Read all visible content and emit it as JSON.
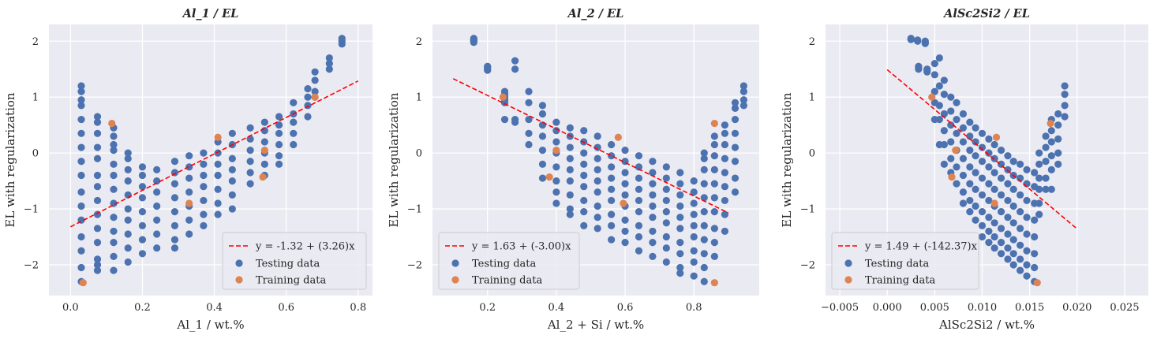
{
  "chart_data": [
    {
      "type": "scatter",
      "title": "Al_1 / EL",
      "xlabel": "Al_1 / wt.%",
      "ylabel": "EL with regularization",
      "xlim": [
        -0.06,
        0.84
      ],
      "ylim": [
        -2.55,
        2.3
      ],
      "xticks": [
        0.0,
        0.2,
        0.4,
        0.6,
        0.8
      ],
      "xtick_labels": [
        "0.0",
        "0.2",
        "0.4",
        "0.6",
        "0.8"
      ],
      "yticks": [
        -2,
        -1,
        0,
        1,
        2
      ],
      "ytick_labels": [
        "−2",
        "−1",
        "0",
        "1",
        "2"
      ],
      "grid": true,
      "legend_position": "lower-right",
      "fit": {
        "label": "y = -1.32 + (3.26)x",
        "x": [
          0.0,
          0.8
        ],
        "y": [
          -1.32,
          1.288
        ]
      },
      "testing": {
        "name": "Testing data",
        "columns": [
          {
            "x": 0.03,
            "y": [
              1.2,
              1.1,
              0.95,
              0.85,
              0.6,
              0.35,
              0.1,
              -0.15,
              -0.4,
              -0.7,
              -0.95,
              -1.2,
              -1.5,
              -1.75,
              -2.05,
              -2.3
            ]
          },
          {
            "x": 0.075,
            "y": [
              0.65,
              0.55,
              0.35,
              0.1,
              -0.1,
              -0.4,
              -0.6,
              -0.85,
              -1.1,
              -1.35,
              -1.6,
              -1.9,
              -2.0,
              -2.1
            ]
          },
          {
            "x": 0.12,
            "y": [
              0.45,
              0.3,
              0.15,
              0.05,
              -0.2,
              -0.4,
              -0.65,
              -0.9,
              -1.15,
              -1.4,
              -1.6,
              -1.85,
              -2.1
            ]
          },
          {
            "x": 0.16,
            "y": [
              0.0,
              -0.1,
              -0.3,
              -0.5,
              -0.75,
              -1.0,
              -1.2,
              -1.45,
              -1.7,
              -1.95
            ]
          },
          {
            "x": 0.2,
            "y": [
              -0.25,
              -0.4,
              -0.6,
              -0.8,
              -1.05,
              -1.3,
              -1.55,
              -1.8
            ]
          },
          {
            "x": 0.24,
            "y": [
              -0.3,
              -0.5,
              -0.7,
              -0.95,
              -1.2,
              -1.45,
              -1.7
            ]
          },
          {
            "x": 0.29,
            "y": [
              -0.15,
              -0.35,
              -0.55,
              -0.8,
              -1.05,
              -1.3,
              -1.55,
              -1.7
            ]
          },
          {
            "x": 0.33,
            "y": [
              -0.05,
              -0.25,
              -0.45,
              -0.7,
              -0.95,
              -1.2,
              -1.45
            ]
          },
          {
            "x": 0.37,
            "y": [
              0.0,
              -0.2,
              -0.4,
              -0.6,
              -0.85,
              -1.1,
              -1.3
            ]
          },
          {
            "x": 0.41,
            "y": [
              0.2,
              0.0,
              -0.2,
              -0.4,
              -0.65,
              -0.9,
              -1.1
            ]
          },
          {
            "x": 0.45,
            "y": [
              0.35,
              0.15,
              -0.1,
              -0.3,
              -0.5,
              -0.75,
              -1.0
            ]
          },
          {
            "x": 0.5,
            "y": [
              0.45,
              0.25,
              0.05,
              -0.15,
              -0.35,
              -0.55
            ]
          },
          {
            "x": 0.54,
            "y": [
              0.55,
              0.4,
              0.2,
              0.0,
              -0.2,
              -0.4
            ]
          },
          {
            "x": 0.58,
            "y": [
              0.65,
              0.5,
              0.35,
              0.15,
              -0.05,
              -0.2
            ]
          },
          {
            "x": 0.62,
            "y": [
              0.9,
              0.7,
              0.55,
              0.35,
              0.15
            ]
          },
          {
            "x": 0.66,
            "y": [
              1.15,
              1.0,
              0.85,
              0.65
            ]
          },
          {
            "x": 0.68,
            "y": [
              1.45,
              1.3,
              1.1,
              1.0
            ]
          },
          {
            "x": 0.72,
            "y": [
              1.7,
              1.6,
              1.5
            ]
          },
          {
            "x": 0.755,
            "y": [
              2.05,
              2.0,
              1.95
            ]
          }
        ]
      },
      "training": {
        "name": "Training data",
        "points": [
          [
            0.035,
            -2.32
          ],
          [
            0.115,
            0.53
          ],
          [
            0.33,
            -0.9
          ],
          [
            0.41,
            0.28
          ],
          [
            0.535,
            -0.43
          ],
          [
            0.54,
            0.05
          ],
          [
            0.68,
            1.0
          ]
        ]
      }
    },
    {
      "type": "scatter",
      "title": "Al_2 / EL",
      "xlabel": "Al_2 + Si / wt.%",
      "ylabel": "EL with regularization",
      "xlim": [
        0.04,
        0.99
      ],
      "ylim": [
        -2.55,
        2.3
      ],
      "xticks": [
        0.2,
        0.4,
        0.6,
        0.8
      ],
      "xtick_labels": [
        "0.2",
        "0.4",
        "0.6",
        "0.8"
      ],
      "yticks": [
        -2,
        -1,
        0,
        1,
        2
      ],
      "ytick_labels": [
        "−2",
        "−1",
        "0",
        "1",
        "2"
      ],
      "grid": true,
      "legend_position": "lower-left",
      "fit": {
        "label": "y = 1.63 + (-3.00)x",
        "x": [
          0.1,
          0.9
        ],
        "y": [
          1.33,
          -1.07
        ]
      },
      "testing": {
        "name": "Testing data",
        "columns": [
          {
            "x": 0.16,
            "y": [
              2.05,
              2.03,
              2.01,
              2.0,
              1.98
            ]
          },
          {
            "x": 0.2,
            "y": [
              1.55,
              1.53,
              1.5,
              1.48
            ]
          },
          {
            "x": 0.25,
            "y": [
              1.1,
              1.05,
              1.0,
              0.95,
              0.9,
              0.6
            ]
          },
          {
            "x": 0.28,
            "y": [
              1.5,
              1.65,
              0.6,
              0.55
            ]
          },
          {
            "x": 0.32,
            "y": [
              1.1,
              0.9,
              0.6,
              0.35,
              0.15
            ]
          },
          {
            "x": 0.36,
            "y": [
              0.85,
              0.7,
              0.5,
              0.3,
              0.05,
              -0.2,
              -0.45
            ]
          },
          {
            "x": 0.4,
            "y": [
              0.55,
              0.4,
              0.2,
              0.0,
              -0.25,
              -0.5,
              -0.7,
              -0.9
            ]
          },
          {
            "x": 0.44,
            "y": [
              0.45,
              0.3,
              0.1,
              -0.1,
              -0.3,
              -0.5,
              -0.75,
              -1.0,
              -1.1
            ]
          },
          {
            "x": 0.48,
            "y": [
              0.4,
              0.2,
              0.0,
              -0.2,
              -0.4,
              -0.6,
              -0.85,
              -1.05,
              -1.3
            ]
          },
          {
            "x": 0.52,
            "y": [
              0.3,
              0.1,
              -0.1,
              -0.3,
              -0.5,
              -0.7,
              -0.95,
              -1.15,
              -1.35
            ]
          },
          {
            "x": 0.56,
            "y": [
              0.15,
              -0.05,
              -0.25,
              -0.45,
              -0.65,
              -0.85,
              -1.1,
              -1.3,
              -1.55
            ]
          },
          {
            "x": 0.6,
            "y": [
              0.05,
              -0.15,
              -0.35,
              -0.55,
              -0.75,
              -0.95,
              -1.2,
              -1.4,
              -1.6
            ]
          },
          {
            "x": 0.64,
            "y": [
              -0.05,
              -0.25,
              -0.45,
              -0.65,
              -0.85,
              -1.05,
              -1.3,
              -1.5,
              -1.75
            ]
          },
          {
            "x": 0.68,
            "y": [
              -0.15,
              -0.35,
              -0.55,
              -0.75,
              -0.95,
              -1.15,
              -1.4,
              -1.6,
              -1.85
            ]
          },
          {
            "x": 0.72,
            "y": [
              -0.25,
              -0.45,
              -0.65,
              -0.85,
              -1.05,
              -1.25,
              -1.5,
              -1.7,
              -1.95
            ]
          },
          {
            "x": 0.76,
            "y": [
              -0.35,
              -0.55,
              -0.75,
              -0.95,
              -1.15,
              -1.35,
              -1.6,
              -1.8,
              -2.05,
              -2.15
            ]
          },
          {
            "x": 0.8,
            "y": [
              -0.5,
              -0.7,
              -0.9,
              -1.1,
              -1.3,
              -1.5,
              -1.75,
              -1.95,
              -2.2
            ]
          },
          {
            "x": 0.83,
            "y": [
              0.0,
              -0.1,
              -0.3,
              -0.55,
              -0.8,
              -1.05,
              -1.3,
              -1.55,
              -1.8,
              -2.05,
              -2.3
            ]
          },
          {
            "x": 0.86,
            "y": [
              0.3,
              0.15,
              -0.05,
              -0.3,
              -0.55,
              -0.8,
              -1.05,
              -1.35,
              -1.6,
              -1.85
            ]
          },
          {
            "x": 0.89,
            "y": [
              0.5,
              0.35,
              0.15,
              -0.1,
              -0.35,
              -0.6,
              -0.85,
              -1.1,
              -1.4
            ]
          },
          {
            "x": 0.92,
            "y": [
              0.9,
              0.8,
              0.6,
              0.35,
              0.1,
              -0.15,
              -0.45,
              -0.7
            ]
          },
          {
            "x": 0.945,
            "y": [
              1.2,
              1.1,
              0.95,
              0.85
            ]
          }
        ]
      },
      "training": {
        "name": "Training data",
        "points": [
          [
            0.245,
            1.0
          ],
          [
            0.38,
            -0.43
          ],
          [
            0.4,
            0.05
          ],
          [
            0.58,
            0.28
          ],
          [
            0.595,
            -0.9
          ],
          [
            0.86,
            -2.32
          ],
          [
            0.86,
            0.53
          ]
        ]
      }
    },
    {
      "type": "scatter",
      "title": "AlSc2Si2 / EL",
      "xlabel": "AlSc2Si2 / wt.%",
      "ylabel": "EL with regularization",
      "xlim": [
        -0.0065,
        0.0275
      ],
      "ylim": [
        -2.55,
        2.3
      ],
      "xticks": [
        -0.005,
        0.0,
        0.005,
        0.01,
        0.015,
        0.02,
        0.025
      ],
      "xtick_labels": [
        "−0.005",
        "0.000",
        "0.005",
        "0.010",
        "0.015",
        "0.020",
        "0.025"
      ],
      "yticks": [
        -2,
        -1,
        0,
        1,
        2
      ],
      "ytick_labels": [
        "−2",
        "−1",
        "0",
        "1",
        "2"
      ],
      "grid": true,
      "legend_position": "lower-left",
      "fit": {
        "label": "y = 1.49 + (-142.37)x",
        "x": [
          0.0,
          0.02
        ],
        "y": [
          1.49,
          -1.357
        ]
      },
      "testing": {
        "name": "Testing data",
        "columns": [
          {
            "x": 0.0025,
            "y": [
              2.05,
              2.03
            ]
          },
          {
            "x": 0.0032,
            "y": [
              2.02,
              2.0
            ]
          },
          {
            "x": 0.004,
            "y": [
              2.0,
              1.98,
              1.96
            ]
          },
          {
            "x": 0.0033,
            "y": [
              1.55,
              1.53,
              1.5
            ]
          },
          {
            "x": 0.0042,
            "y": [
              1.5,
              1.48,
              1.45
            ]
          },
          {
            "x": 0.005,
            "y": [
              1.6,
              1.4,
              1.1,
              0.9,
              0.6
            ]
          },
          {
            "x": 0.0055,
            "y": [
              1.7,
              1.2,
              0.85,
              0.6,
              0.15
            ]
          },
          {
            "x": 0.006,
            "y": [
              1.3,
              1.05,
              0.7,
              0.4,
              0.15,
              -0.2
            ]
          },
          {
            "x": 0.0067,
            "y": [
              1.0,
              0.75,
              0.5,
              0.2,
              -0.1,
              -0.35
            ]
          },
          {
            "x": 0.0073,
            "y": [
              0.9,
              0.6,
              0.35,
              0.05,
              -0.25,
              -0.55
            ]
          },
          {
            "x": 0.008,
            "y": [
              0.7,
              0.45,
              0.2,
              -0.1,
              -0.4,
              -0.7,
              -0.9
            ]
          },
          {
            "x": 0.0087,
            "y": [
              0.55,
              0.3,
              0.05,
              -0.25,
              -0.55,
              -0.85,
              -1.05
            ]
          },
          {
            "x": 0.0093,
            "y": [
              0.45,
              0.2,
              -0.05,
              -0.35,
              -0.65,
              -0.95,
              -1.2
            ]
          },
          {
            "x": 0.01,
            "y": [
              0.35,
              0.1,
              -0.15,
              -0.45,
              -0.75,
              -1.05,
              -1.3,
              -1.5
            ]
          },
          {
            "x": 0.0107,
            "y": [
              0.25,
              0.0,
              -0.25,
              -0.55,
              -0.85,
              -1.15,
              -1.4,
              -1.6
            ]
          },
          {
            "x": 0.0113,
            "y": [
              0.15,
              -0.1,
              -0.35,
              -0.65,
              -0.95,
              -1.25,
              -1.5,
              -1.7
            ]
          },
          {
            "x": 0.012,
            "y": [
              0.05,
              -0.2,
              -0.45,
              -0.75,
              -1.05,
              -1.35,
              -1.6,
              -1.8
            ]
          },
          {
            "x": 0.0127,
            "y": [
              -0.05,
              -0.3,
              -0.55,
              -0.85,
              -1.15,
              -1.45,
              -1.7,
              -1.9
            ]
          },
          {
            "x": 0.0133,
            "y": [
              -0.15,
              -0.4,
              -0.65,
              -0.95,
              -1.25,
              -1.55,
              -1.8,
              -2.0
            ]
          },
          {
            "x": 0.014,
            "y": [
              -0.2,
              -0.45,
              -0.75,
              -1.05,
              -1.35,
              -1.65,
              -1.9,
              -2.1
            ]
          },
          {
            "x": 0.0147,
            "y": [
              -0.3,
              -0.55,
              -0.85,
              -1.15,
              -1.45,
              -1.75,
              -2.0,
              -2.2
            ]
          },
          {
            "x": 0.0155,
            "y": [
              -0.35,
              -0.6,
              -0.9,
              -1.2,
              -1.5,
              -1.8,
              -2.05,
              -2.3
            ]
          },
          {
            "x": 0.016,
            "y": [
              0.0,
              -0.2,
              -0.45,
              -0.65,
              -0.9,
              -1.1
            ]
          },
          {
            "x": 0.0167,
            "y": [
              0.3,
              0.1,
              -0.15,
              -0.45,
              -0.65
            ]
          },
          {
            "x": 0.0173,
            "y": [
              0.6,
              0.4,
              0.2,
              -0.05,
              -0.3,
              -0.65
            ]
          },
          {
            "x": 0.018,
            "y": [
              0.7,
              0.5,
              0.25,
              0.0,
              -0.2
            ]
          },
          {
            "x": 0.0187,
            "y": [
              1.2,
              1.05,
              0.85,
              0.65
            ]
          }
        ]
      },
      "training": {
        "name": "Training data",
        "points": [
          [
            0.0047,
            1.0
          ],
          [
            0.0068,
            -0.43
          ],
          [
            0.0072,
            0.05
          ],
          [
            0.0113,
            -0.9
          ],
          [
            0.0115,
            0.28
          ],
          [
            0.0158,
            -2.32
          ],
          [
            0.0172,
            0.53
          ]
        ]
      }
    }
  ]
}
